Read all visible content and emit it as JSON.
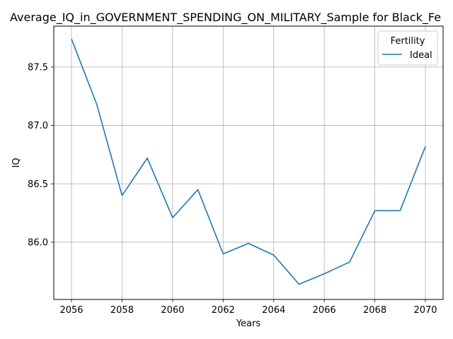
{
  "chart_data": {
    "type": "line",
    "title": "Average_IQ_in_GOVERNMENT_SPENDING_ON_MILITARY_Sample for Black_Fe",
    "xlabel": "Years",
    "ylabel": "IQ",
    "x": [
      2056,
      2057,
      2058,
      2059,
      2060,
      2061,
      2062,
      2063,
      2064,
      2065,
      2066,
      2067,
      2068,
      2069,
      2070
    ],
    "series": [
      {
        "name": "Ideal",
        "color": "#1f77b4",
        "values": [
          87.74,
          87.18,
          86.4,
          86.72,
          86.21,
          86.45,
          85.9,
          85.99,
          85.89,
          85.64,
          85.73,
          85.83,
          86.27,
          86.27,
          86.82
        ]
      }
    ],
    "xlim": [
      2055.3,
      2070.7
    ],
    "ylim": [
      85.51,
      87.85
    ],
    "xticks": [
      2056,
      2058,
      2060,
      2062,
      2064,
      2066,
      2068,
      2070
    ],
    "yticks": [
      86.0,
      86.5,
      87.0,
      87.5
    ],
    "ytick_labels": [
      "86.0",
      "86.5",
      "87.0",
      "87.5"
    ],
    "grid": true,
    "legend": {
      "title": "Fertility",
      "placement": "top-right"
    }
  }
}
